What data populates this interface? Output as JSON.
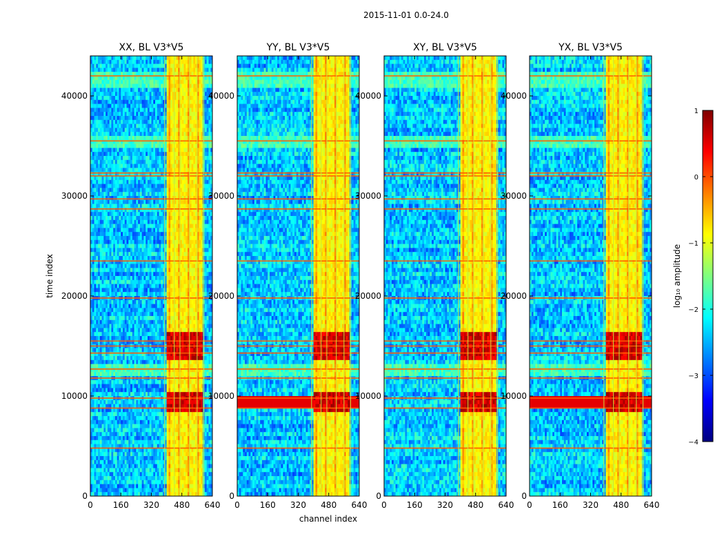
{
  "figure": {
    "suptitle": "2015-11-01 0.0-24.0"
  },
  "chart_data": {
    "type": "heatmap",
    "title": "2015-11-01 0.0-24.0",
    "xlabel": "channel index",
    "ylabel": "time index",
    "xlim": [
      0,
      640
    ],
    "ylim": [
      0,
      44000
    ],
    "xticks": [
      "0",
      "160",
      "320",
      "480",
      "640"
    ],
    "yticks": [
      "0",
      "10000",
      "20000",
      "30000",
      "40000"
    ],
    "panels": [
      {
        "title": "XX, BL V3*V5"
      },
      {
        "title": "YY, BL V3*V5"
      },
      {
        "title": "XY, BL V3*V5"
      },
      {
        "title": "YX, BL V3*V5"
      }
    ],
    "colorbar": {
      "label": "log₁₀ amplitude",
      "range": [
        -4,
        1
      ],
      "ticks": [
        "1",
        "0",
        "−1",
        "−2",
        "−3",
        "−4"
      ],
      "colormap": "jet"
    },
    "features": {
      "hot_channel_band": [
        400,
        590
      ],
      "hot_channel_columns": [
        390,
        440,
        470,
        520,
        560,
        595,
        640
      ],
      "hot_time_blocks": [
        [
          8500,
          10500
        ],
        [
          13500,
          16500
        ]
      ],
      "orange_time_lines": [
        4800,
        8800,
        9800,
        11800,
        12700,
        14300,
        15000,
        15500,
        19800,
        23500,
        28700,
        29700,
        32000,
        32300,
        35500,
        42000
      ],
      "cyan_time_bands": [
        [
          12000,
          13000
        ],
        [
          35000,
          36000
        ],
        [
          41000,
          42500
        ]
      ]
    }
  }
}
